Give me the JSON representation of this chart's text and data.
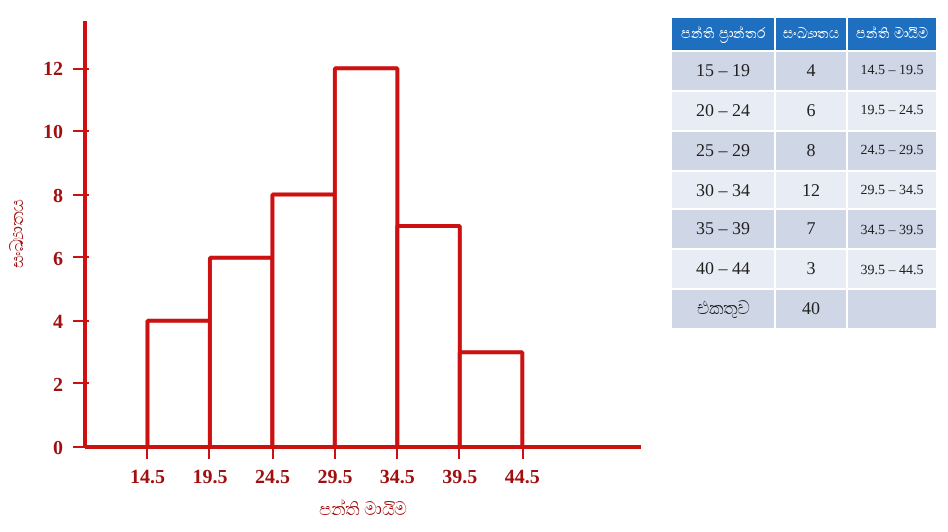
{
  "chart_data": [
    {
      "type": "histogram",
      "xlabel": "පන්ති මායිම",
      "ylabel": "සංඛ්‍යාතය",
      "bins": [
        14.5,
        19.5,
        24.5,
        29.5,
        34.5,
        39.5,
        44.5
      ],
      "values": [
        4,
        6,
        8,
        12,
        7,
        3
      ],
      "color": "#cc1111",
      "xlim": [
        9.5,
        54
      ],
      "ylim": [
        0,
        13.5
      ],
      "xticks": [
        14.5,
        19.5,
        24.5,
        29.5,
        34.5,
        39.5,
        44.5
      ],
      "yticks": [
        0,
        2,
        4,
        6,
        8,
        10,
        12
      ],
      "grid": false
    },
    {
      "type": "other",
      "annotations": [
        "පන්ති ප්‍රාන්තර",
        "සංඛ්‍යාතය",
        "පන්ති මායිම",
        "15 – 19",
        "4",
        "14.5 – 19.5",
        "20 – 24",
        "6",
        "19.5 – 24.5",
        "25 – 29",
        "8",
        "24.5 – 29.5",
        "30 – 34",
        "12",
        "29.5 – 34.5",
        "35 – 39",
        "7",
        "34.5 – 39.5",
        "40 – 44",
        "3",
        "39.5 – 44.5",
        "එකතුව",
        "40",
        null
      ]
    }
  ]
}
